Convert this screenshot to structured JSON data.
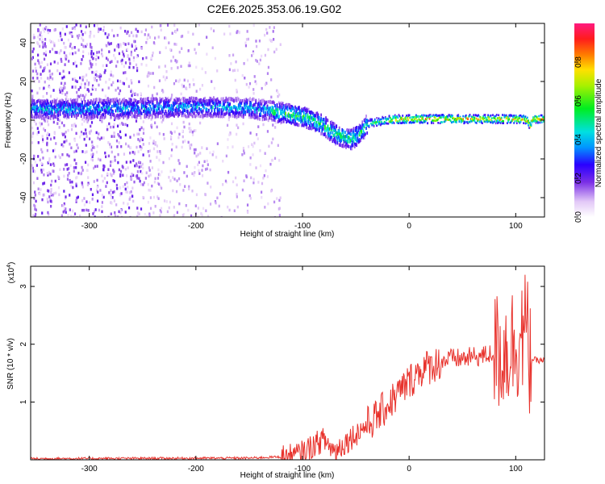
{
  "title": "C2E6.2025.353.06.19.G02",
  "chart_data": [
    {
      "type": "heatmap",
      "xlabel": "Height of straight line (km)",
      "ylabel": "Frequency (Hz)",
      "xlim": [
        -355,
        127
      ],
      "ylim": [
        -50,
        50
      ],
      "xticks": [
        -300,
        -200,
        -100,
        0,
        100
      ],
      "yticks": [
        -40,
        -20,
        0,
        20,
        40
      ],
      "colorbar": {
        "label": "Normalized spectral amplitude",
        "range": [
          0,
          1
        ],
        "ticks": [
          "0.0",
          "0.2",
          "0.4",
          "0.6",
          "0.8"
        ]
      },
      "ridge": {
        "x": [
          -355,
          -300,
          -250,
          -200,
          -150,
          -120,
          -100,
          -90,
          -80,
          -70,
          -60,
          -55,
          -50,
          -45,
          -40,
          -30,
          -20,
          -10,
          0,
          20,
          50,
          80,
          100,
          110,
          113,
          115,
          127
        ],
        "y": [
          6,
          6,
          6.5,
          7,
          6.5,
          4,
          2,
          0,
          -3,
          -7,
          -9,
          -10,
          -8,
          -6,
          -2,
          -1,
          0,
          0.5,
          0.5,
          0.5,
          0.5,
          0.5,
          0.5,
          0,
          -3,
          0.5,
          0.5
        ]
      }
    },
    {
      "type": "line",
      "xlabel": "Height of straight line (km)",
      "ylabel": "SNR (10 * v/v)",
      "yscale_label": "(x10",
      "yscale_exp": "4",
      "xlim": [
        -355,
        127
      ],
      "ylim": [
        0,
        3.35
      ],
      "xticks": [
        -300,
        -200,
        -100,
        0,
        100
      ],
      "yticks": [
        1,
        2,
        3
      ],
      "line_color": "#e8322c",
      "series_envelope": {
        "x": [
          -355,
          -150,
          -110,
          -100,
          -90,
          -80,
          -70,
          -60,
          -50,
          -40,
          -30,
          -20,
          -10,
          0,
          10,
          20,
          30,
          40,
          50,
          60,
          70,
          80,
          90,
          100,
          105,
          110,
          113,
          115,
          120,
          127
        ],
        "y": [
          0.02,
          0.03,
          0.06,
          0.12,
          0.25,
          0.35,
          0.15,
          0.3,
          0.45,
          0.6,
          0.75,
          0.95,
          1.15,
          1.35,
          1.55,
          1.62,
          1.7,
          1.75,
          1.75,
          1.78,
          1.8,
          1.85,
          1.9,
          2.05,
          2.15,
          2.25,
          1.8,
          1.75,
          1.72,
          1.72
        ]
      }
    }
  ]
}
